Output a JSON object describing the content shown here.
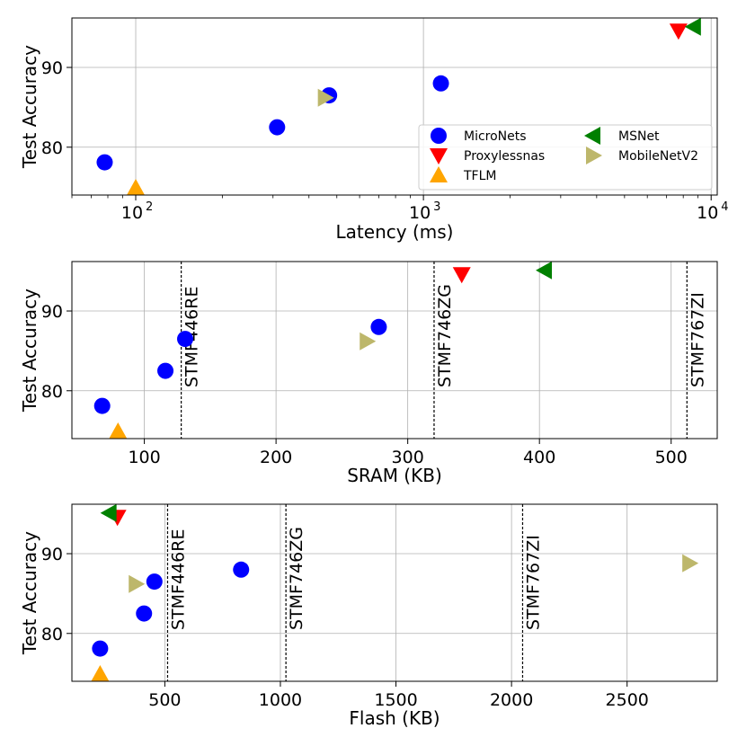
{
  "colors": {
    "MicroNets": "#0000ff",
    "Proxylessnas": "#ff0000",
    "TFLM": "#ffa500",
    "MSNet": "#008000",
    "MobileNetV2": "#bdb76b"
  },
  "markers": {
    "MicroNets": "circle",
    "Proxylessnas": "triangle-down",
    "TFLM": "triangle-up",
    "MSNet": "triangle-left",
    "MobileNetV2": "triangle-right"
  },
  "legend": {
    "placement": "lower-right",
    "columns": 2,
    "entries": [
      "MicroNets",
      "Proxylessnas",
      "TFLM",
      "MSNet",
      "MobileNetV2"
    ]
  },
  "chart_data": [
    {
      "type": "scatter",
      "xscale": "log",
      "xlabel": "Latency (ms)",
      "ylabel": "Test Accuracy",
      "xlim": [
        60,
        10500
      ],
      "ylim": [
        74.0,
        96.2
      ],
      "xticks": [
        100,
        1000,
        10000
      ],
      "xtick_labels": [
        {
          "base": "10",
          "exp": "2"
        },
        {
          "base": "10",
          "exp": "3"
        },
        {
          "base": "10",
          "exp": "4"
        }
      ],
      "yticks": [
        80,
        90
      ],
      "grid": true,
      "series": [
        {
          "name": "MicroNets",
          "points": [
            [
              78,
              78.1
            ],
            [
              310,
              82.5
            ],
            [
              470,
              86.5
            ],
            [
              1150,
              88.0
            ]
          ]
        },
        {
          "name": "Proxylessnas",
          "points": [
            [
              7700,
              94.6
            ]
          ]
        },
        {
          "name": "TFLM",
          "points": [
            [
              100,
              74.9
            ]
          ]
        },
        {
          "name": "MSNet",
          "points": [
            [
              8700,
              95.1
            ]
          ]
        },
        {
          "name": "MobileNetV2",
          "points": [
            [
              455,
              86.2
            ]
          ]
        }
      ],
      "vlines": []
    },
    {
      "type": "scatter",
      "xscale": "linear",
      "xlabel": "SRAM (KB)",
      "ylabel": "Test Accuracy",
      "xlim": [
        45,
        535
      ],
      "ylim": [
        74.0,
        96.2
      ],
      "xticks": [
        100,
        200,
        300,
        400,
        500
      ],
      "yticks": [
        80,
        90
      ],
      "grid": true,
      "series": [
        {
          "name": "MicroNets",
          "points": [
            [
              68,
              78.1
            ],
            [
              116,
              82.5
            ],
            [
              131,
              86.5
            ],
            [
              278,
              88.0
            ]
          ]
        },
        {
          "name": "Proxylessnas",
          "points": [
            [
              341,
              94.6
            ]
          ]
        },
        {
          "name": "TFLM",
          "points": [
            [
              80,
              74.9
            ]
          ]
        },
        {
          "name": "MSNet",
          "points": [
            [
              404,
              95.1
            ]
          ]
        },
        {
          "name": "MobileNetV2",
          "points": [
            [
              269,
              86.2
            ]
          ]
        }
      ],
      "vlines": [
        {
          "x": 128,
          "label": "STMF446RE"
        },
        {
          "x": 320,
          "label": "STMF746ZG"
        },
        {
          "x": 512,
          "label": "STMF767ZI"
        }
      ]
    },
    {
      "type": "scatter",
      "xscale": "linear",
      "xlabel": "Flash (KB)",
      "ylabel": "Test Accuracy",
      "xlim": [
        98,
        2890
      ],
      "ylim": [
        74.0,
        96.2
      ],
      "xticks": [
        500,
        1000,
        1500,
        2000,
        2500
      ],
      "yticks": [
        80,
        90
      ],
      "grid": true,
      "series": [
        {
          "name": "MicroNets",
          "points": [
            [
              220,
              78.1
            ],
            [
              410,
              82.5
            ],
            [
              455,
              86.5
            ],
            [
              830,
              88.0
            ]
          ]
        },
        {
          "name": "Proxylessnas",
          "points": [
            [
              295,
              94.6
            ]
          ]
        },
        {
          "name": "TFLM",
          "points": [
            [
              220,
              74.9
            ]
          ]
        },
        {
          "name": "MSNet",
          "points": [
            [
              260,
              95.1
            ]
          ]
        },
        {
          "name": "MobileNetV2",
          "points": [
            [
              375,
              86.2
            ],
            [
              2770,
              88.8
            ]
          ]
        }
      ],
      "vlines": [
        {
          "x": 512,
          "label": "STMF446RE"
        },
        {
          "x": 1024,
          "label": "STMF746ZG"
        },
        {
          "x": 2048,
          "label": "STMF767ZI"
        }
      ]
    }
  ]
}
